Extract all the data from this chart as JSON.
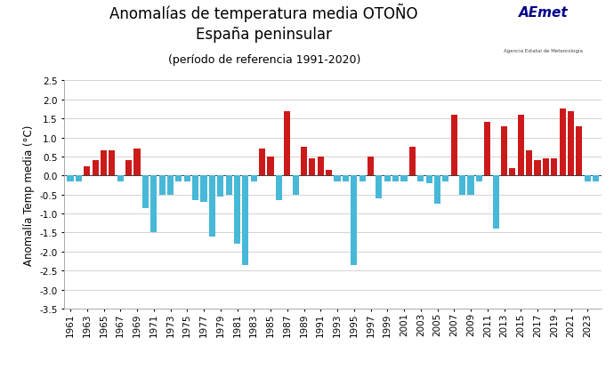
{
  "title_line1": "Anomalías de temperatura media OTOÑO",
  "title_line2": "España peninsular",
  "title_line3": "(período de referencia 1991-2020)",
  "ylabel": "Anomalía Temp media (°C)",
  "ylim": [
    -3.5,
    2.5
  ],
  "yticks": [
    -3.5,
    -3.0,
    -2.5,
    -2.0,
    -1.5,
    -1.0,
    -0.5,
    0.0,
    0.5,
    1.0,
    1.5,
    2.0,
    2.5
  ],
  "background_color": "#ffffff",
  "bar_color_pos": "#cc1a1a",
  "bar_color_neg": "#47b8d8",
  "years": [
    1961,
    1962,
    1963,
    1964,
    1965,
    1966,
    1967,
    1968,
    1969,
    1970,
    1971,
    1972,
    1973,
    1974,
    1975,
    1976,
    1977,
    1978,
    1979,
    1980,
    1981,
    1982,
    1983,
    1984,
    1985,
    1986,
    1987,
    1988,
    1989,
    1990,
    1991,
    1992,
    1993,
    1994,
    1995,
    1996,
    1997,
    1998,
    1999,
    2000,
    2001,
    2002,
    2003,
    2004,
    2005,
    2006,
    2007,
    2008,
    2009,
    2010,
    2011,
    2012,
    2013,
    2014,
    2015,
    2016,
    2017,
    2018,
    2019,
    2020,
    2021,
    2022,
    2023,
    2024
  ],
  "values": [
    -0.15,
    -0.15,
    0.25,
    0.4,
    0.65,
    0.65,
    -0.15,
    0.4,
    0.7,
    -0.85,
    -1.5,
    -0.5,
    -0.5,
    -0.15,
    -0.15,
    -0.65,
    -0.7,
    -1.6,
    -0.55,
    -0.5,
    -1.8,
    -2.35,
    -0.15,
    0.7,
    0.5,
    -0.65,
    1.7,
    -0.5,
    0.75,
    0.45,
    0.5,
    0.15,
    -0.15,
    -0.15,
    -2.35,
    -0.15,
    0.5,
    -0.6,
    -0.15,
    -0.15,
    -0.15,
    0.75,
    -0.15,
    -0.2,
    -0.75,
    -0.15,
    1.6,
    -0.5,
    -0.5,
    -0.15,
    1.4,
    -1.4,
    1.3,
    0.2,
    1.6,
    0.65,
    0.4,
    0.45,
    0.45,
    1.75,
    1.7,
    1.3,
    -0.15,
    -0.15
  ],
  "grid_color": "#cccccc",
  "spine_color": "#aaaaaa",
  "tick_label_fontsize": 7.5,
  "axis_label_fontsize": 8.5,
  "title_fontsize_1": 12,
  "title_fontsize_2": 12,
  "title_fontsize_3": 9,
  "aemet_text1": "AEmet",
  "aemet_text2": "Agencia Estatal de Meteorología"
}
